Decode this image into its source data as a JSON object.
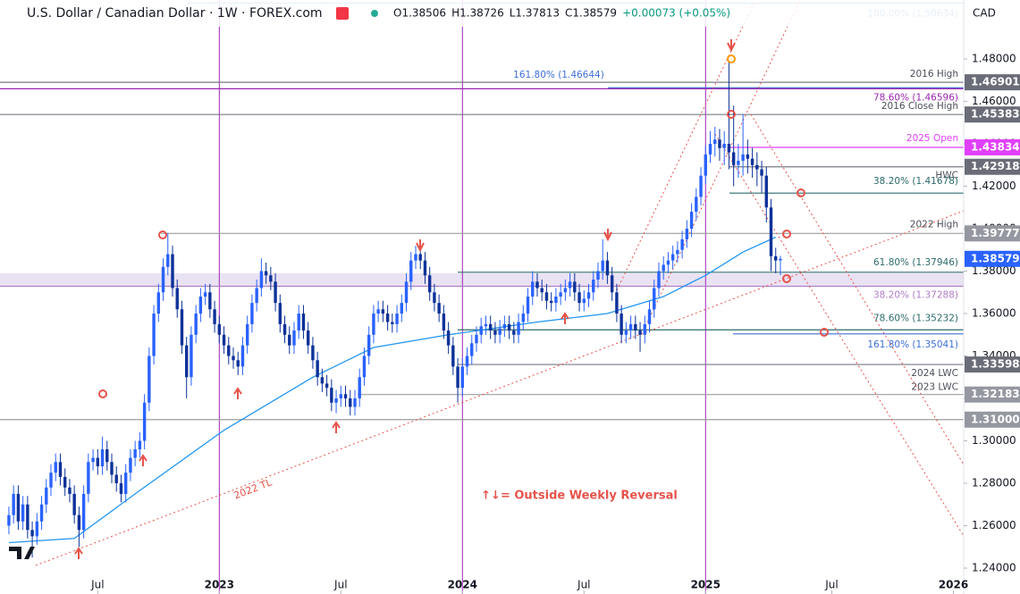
{
  "chart_data": {
    "type": "candlestick",
    "header": {
      "symbol": "U.S. Dollar / Canadian Dollar · 1W · FOREX.com",
      "quote": [
        "O1.38506",
        "H1.38726",
        "L1.37813",
        "C1.38579",
        "+0.00073 (+0.05%)"
      ],
      "currency": "CAD"
    },
    "up_color": "#2962ff",
    "down_color": "#0c3299",
    "ylim": [
      1.2278,
      1.5078
    ],
    "xlim": [
      -1.9,
      204.2
    ],
    "grid": false,
    "yticks": [
      {
        "value": 1.24,
        "label": "1.24000"
      },
      {
        "value": 1.26,
        "label": "1.26000"
      },
      {
        "value": 1.28,
        "label": "1.28000"
      },
      {
        "value": 1.3,
        "label": "1.30000"
      },
      {
        "value": 1.32,
        "label": "1.32000"
      },
      {
        "value": 1.34,
        "label": "1.34000"
      },
      {
        "value": 1.36,
        "label": "1.36000"
      },
      {
        "value": 1.38,
        "label": "1.38000"
      },
      {
        "value": 1.4,
        "label": "1.40000"
      },
      {
        "value": 1.42,
        "label": "1.42000"
      },
      {
        "value": 1.44,
        "label": "1.44000"
      },
      {
        "value": 1.46,
        "label": "1.46000"
      },
      {
        "value": 1.48,
        "label": "1.48000"
      }
    ],
    "xticks": [
      {
        "value": 19,
        "label": "Jul"
      },
      {
        "value": 45,
        "label": "2023"
      },
      {
        "value": 71,
        "label": "Jul"
      },
      {
        "value": 97,
        "label": "2024"
      },
      {
        "value": 123,
        "label": "Jul"
      },
      {
        "value": 149,
        "label": "2025"
      },
      {
        "value": 176,
        "label": "Jul"
      },
      {
        "value": 202,
        "label": "2026"
      }
    ],
    "year_lines": [
      45,
      97,
      149
    ],
    "ohlc": [
      [
        1.26,
        1.269,
        1.256,
        1.265
      ],
      [
        1.265,
        1.279,
        1.261,
        1.275
      ],
      [
        1.275,
        1.279,
        1.258,
        1.262
      ],
      [
        1.262,
        1.274,
        1.258,
        1.27
      ],
      [
        1.27,
        1.274,
        1.254,
        1.258
      ],
      [
        1.258,
        1.262,
        1.245,
        1.255
      ],
      [
        1.255,
        1.266,
        1.251,
        1.262
      ],
      [
        1.262,
        1.274,
        1.258,
        1.27
      ],
      [
        1.27,
        1.282,
        1.266,
        1.278
      ],
      [
        1.278,
        1.289,
        1.274,
        1.285
      ],
      [
        1.285,
        1.294,
        1.281,
        1.29
      ],
      [
        1.29,
        1.294,
        1.279,
        1.283
      ],
      [
        1.283,
        1.287,
        1.274,
        1.278
      ],
      [
        1.278,
        1.282,
        1.271,
        1.275
      ],
      [
        1.275,
        1.279,
        1.261,
        1.265
      ],
      [
        1.265,
        1.269,
        1.25,
        1.258
      ],
      [
        1.258,
        1.279,
        1.254,
        1.275
      ],
      [
        1.275,
        1.294,
        1.271,
        1.29
      ],
      [
        1.29,
        1.296,
        1.286,
        1.292
      ],
      [
        1.292,
        1.296,
        1.284,
        1.288
      ],
      [
        1.288,
        1.302,
        1.284,
        1.296
      ],
      [
        1.296,
        1.3,
        1.286,
        1.29
      ],
      [
        1.29,
        1.294,
        1.28,
        1.284
      ],
      [
        1.284,
        1.288,
        1.276,
        1.28
      ],
      [
        1.28,
        1.284,
        1.271,
        1.275
      ],
      [
        1.275,
        1.289,
        1.271,
        1.285
      ],
      [
        1.285,
        1.296,
        1.281,
        1.292
      ],
      [
        1.292,
        1.3,
        1.288,
        1.296
      ],
      [
        1.296,
        1.304,
        1.292,
        1.3
      ],
      [
        1.3,
        1.322,
        1.296,
        1.318
      ],
      [
        1.318,
        1.344,
        1.314,
        1.34
      ],
      [
        1.34,
        1.364,
        1.336,
        1.36
      ],
      [
        1.36,
        1.374,
        1.356,
        1.37
      ],
      [
        1.37,
        1.386,
        1.366,
        1.382
      ],
      [
        1.382,
        1.398,
        1.378,
        1.388
      ],
      [
        1.388,
        1.392,
        1.368,
        1.372
      ],
      [
        1.372,
        1.376,
        1.358,
        1.362
      ],
      [
        1.362,
        1.366,
        1.341,
        1.345
      ],
      [
        1.345,
        1.349,
        1.32,
        1.33
      ],
      [
        1.33,
        1.354,
        1.326,
        1.35
      ],
      [
        1.35,
        1.364,
        1.346,
        1.36
      ],
      [
        1.36,
        1.372,
        1.356,
        1.368
      ],
      [
        1.368,
        1.374,
        1.364,
        1.37
      ],
      [
        1.37,
        1.374,
        1.358,
        1.362
      ],
      [
        1.362,
        1.366,
        1.351,
        1.355
      ],
      [
        1.355,
        1.359,
        1.346,
        1.35
      ],
      [
        1.35,
        1.354,
        1.341,
        1.345
      ],
      [
        1.345,
        1.349,
        1.336,
        1.34
      ],
      [
        1.34,
        1.344,
        1.334,
        1.338
      ],
      [
        1.338,
        1.342,
        1.331,
        1.335
      ],
      [
        1.335,
        1.349,
        1.331,
        1.345
      ],
      [
        1.345,
        1.359,
        1.341,
        1.355
      ],
      [
        1.355,
        1.369,
        1.351,
        1.365
      ],
      [
        1.365,
        1.376,
        1.361,
        1.372
      ],
      [
        1.372,
        1.386,
        1.368,
        1.38
      ],
      [
        1.38,
        1.384,
        1.374,
        1.378
      ],
      [
        1.378,
        1.382,
        1.371,
        1.375
      ],
      [
        1.375,
        1.379,
        1.361,
        1.365
      ],
      [
        1.365,
        1.369,
        1.351,
        1.355
      ],
      [
        1.355,
        1.359,
        1.346,
        1.35
      ],
      [
        1.35,
        1.354,
        1.341,
        1.345
      ],
      [
        1.345,
        1.356,
        1.341,
        1.352
      ],
      [
        1.352,
        1.364,
        1.348,
        1.36
      ],
      [
        1.36,
        1.364,
        1.348,
        1.352
      ],
      [
        1.352,
        1.356,
        1.341,
        1.345
      ],
      [
        1.345,
        1.349,
        1.334,
        1.338
      ],
      [
        1.338,
        1.342,
        1.326,
        1.33
      ],
      [
        1.33,
        1.334,
        1.323,
        1.327
      ],
      [
        1.327,
        1.331,
        1.321,
        1.325
      ],
      [
        1.325,
        1.329,
        1.314,
        1.318
      ],
      [
        1.318,
        1.324,
        1.313,
        1.32
      ],
      [
        1.32,
        1.326,
        1.316,
        1.322
      ],
      [
        1.322,
        1.326,
        1.316,
        1.32
      ],
      [
        1.32,
        1.324,
        1.312,
        1.316
      ],
      [
        1.316,
        1.324,
        1.312,
        1.32
      ],
      [
        1.32,
        1.334,
        1.316,
        1.33
      ],
      [
        1.33,
        1.344,
        1.326,
        1.34
      ],
      [
        1.34,
        1.354,
        1.336,
        1.35
      ],
      [
        1.35,
        1.364,
        1.346,
        1.36
      ],
      [
        1.36,
        1.366,
        1.356,
        1.362
      ],
      [
        1.362,
        1.366,
        1.356,
        1.36
      ],
      [
        1.36,
        1.364,
        1.352,
        1.356
      ],
      [
        1.356,
        1.36,
        1.351,
        1.355
      ],
      [
        1.355,
        1.364,
        1.351,
        1.36
      ],
      [
        1.36,
        1.369,
        1.356,
        1.365
      ],
      [
        1.365,
        1.379,
        1.361,
        1.375
      ],
      [
        1.375,
        1.389,
        1.371,
        1.385
      ],
      [
        1.385,
        1.392,
        1.381,
        1.388
      ],
      [
        1.388,
        1.392,
        1.381,
        1.385
      ],
      [
        1.385,
        1.389,
        1.374,
        1.378
      ],
      [
        1.378,
        1.382,
        1.366,
        1.37
      ],
      [
        1.37,
        1.374,
        1.361,
        1.365
      ],
      [
        1.365,
        1.369,
        1.356,
        1.36
      ],
      [
        1.36,
        1.364,
        1.348,
        1.352
      ],
      [
        1.352,
        1.356,
        1.341,
        1.345
      ],
      [
        1.345,
        1.349,
        1.331,
        1.335
      ],
      [
        1.335,
        1.339,
        1.318,
        1.325
      ],
      [
        1.325,
        1.339,
        1.321,
        1.335
      ],
      [
        1.335,
        1.344,
        1.331,
        1.34
      ],
      [
        1.34,
        1.35,
        1.336,
        1.346
      ],
      [
        1.346,
        1.354,
        1.342,
        1.35
      ],
      [
        1.35,
        1.358,
        1.346,
        1.354
      ],
      [
        1.354,
        1.359,
        1.35,
        1.355
      ],
      [
        1.355,
        1.359,
        1.348,
        1.352
      ],
      [
        1.352,
        1.356,
        1.346,
        1.35
      ],
      [
        1.35,
        1.357,
        1.346,
        1.353
      ],
      [
        1.353,
        1.359,
        1.349,
        1.355
      ],
      [
        1.355,
        1.359,
        1.348,
        1.352
      ],
      [
        1.352,
        1.356,
        1.346,
        1.35
      ],
      [
        1.35,
        1.36,
        1.346,
        1.356
      ],
      [
        1.356,
        1.364,
        1.352,
        1.36
      ],
      [
        1.36,
        1.372,
        1.356,
        1.368
      ],
      [
        1.368,
        1.38,
        1.364,
        1.375
      ],
      [
        1.375,
        1.379,
        1.368,
        1.372
      ],
      [
        1.372,
        1.376,
        1.366,
        1.37
      ],
      [
        1.37,
        1.374,
        1.362,
        1.366
      ],
      [
        1.366,
        1.37,
        1.361,
        1.365
      ],
      [
        1.365,
        1.372,
        1.361,
        1.368
      ],
      [
        1.368,
        1.374,
        1.364,
        1.37
      ],
      [
        1.37,
        1.376,
        1.366,
        1.372
      ],
      [
        1.372,
        1.379,
        1.368,
        1.375
      ],
      [
        1.375,
        1.379,
        1.366,
        1.37
      ],
      [
        1.37,
        1.374,
        1.361,
        1.365
      ],
      [
        1.365,
        1.371,
        1.361,
        1.367
      ],
      [
        1.367,
        1.374,
        1.363,
        1.37
      ],
      [
        1.37,
        1.38,
        1.366,
        1.376
      ],
      [
        1.376,
        1.384,
        1.372,
        1.38
      ],
      [
        1.38,
        1.395,
        1.376,
        1.385
      ],
      [
        1.385,
        1.389,
        1.374,
        1.378
      ],
      [
        1.378,
        1.382,
        1.366,
        1.37
      ],
      [
        1.37,
        1.374,
        1.356,
        1.36
      ],
      [
        1.36,
        1.364,
        1.346,
        1.35
      ],
      [
        1.35,
        1.356,
        1.346,
        1.352
      ],
      [
        1.352,
        1.359,
        1.348,
        1.355
      ],
      [
        1.355,
        1.359,
        1.348,
        1.352
      ],
      [
        1.352,
        1.356,
        1.342,
        1.35
      ],
      [
        1.35,
        1.359,
        1.346,
        1.355
      ],
      [
        1.355,
        1.366,
        1.351,
        1.362
      ],
      [
        1.362,
        1.376,
        1.358,
        1.372
      ],
      [
        1.372,
        1.384,
        1.368,
        1.38
      ],
      [
        1.38,
        1.387,
        1.376,
        1.383
      ],
      [
        1.383,
        1.389,
        1.379,
        1.385
      ],
      [
        1.385,
        1.392,
        1.381,
        1.388
      ],
      [
        1.388,
        1.394,
        1.384,
        1.39
      ],
      [
        1.39,
        1.399,
        1.386,
        1.395
      ],
      [
        1.395,
        1.404,
        1.391,
        1.4
      ],
      [
        1.4,
        1.412,
        1.396,
        1.408
      ],
      [
        1.408,
        1.419,
        1.404,
        1.415
      ],
      [
        1.415,
        1.429,
        1.411,
        1.425
      ],
      [
        1.425,
        1.439,
        1.421,
        1.435
      ],
      [
        1.435,
        1.446,
        1.431,
        1.44
      ],
      [
        1.44,
        1.448,
        1.434,
        1.442
      ],
      [
        1.442,
        1.447,
        1.432,
        1.438
      ],
      [
        1.438,
        1.446,
        1.43,
        1.44
      ],
      [
        1.44,
        1.479,
        1.428,
        1.436
      ],
      [
        1.436,
        1.458,
        1.42,
        1.43
      ],
      [
        1.43,
        1.44,
        1.424,
        1.432
      ],
      [
        1.432,
        1.454,
        1.425,
        1.435
      ],
      [
        1.435,
        1.442,
        1.426,
        1.433
      ],
      [
        1.433,
        1.438,
        1.424,
        1.43
      ],
      [
        1.43,
        1.436,
        1.42,
        1.428
      ],
      [
        1.428,
        1.432,
        1.417,
        1.425
      ],
      [
        1.425,
        1.429,
        1.403,
        1.41
      ],
      [
        1.41,
        1.414,
        1.38,
        1.387
      ],
      [
        1.387,
        1.391,
        1.379,
        1.385
      ],
      [
        1.38506,
        1.38726,
        1.37813,
        1.38579
      ]
    ],
    "ma": {
      "color": "#2196f3",
      "x": [
        0,
        14,
        27,
        46,
        65,
        78,
        94,
        113,
        128,
        140,
        149,
        157,
        164
      ],
      "values": [
        1.252,
        1.254,
        1.275,
        1.305,
        1.33,
        1.344,
        1.35,
        1.356,
        1.36,
        1.368,
        1.378,
        1.389,
        1.396
      ]
    },
    "levels": [
      {
        "value": 1.50634,
        "label": "100.00% (1.50634)",
        "color": "#5b9bd5"
      },
      {
        "value": 1.46901,
        "label": "2016 High",
        "color": "#787b86",
        "price_label": "1.46901"
      },
      {
        "value": 1.46644,
        "label": "161.80% (1.46644)",
        "color": "#3f6fd8"
      },
      {
        "value": 1.46596,
        "label": "78.60% (1.46596)",
        "color": "#9c27b0"
      },
      {
        "value": 1.45383,
        "label": "2016 Close High",
        "color": "#787b86",
        "price_label": "1.45383"
      },
      {
        "value": 1.43834,
        "label": "2025 Open",
        "color": "#e040fb",
        "price_label": "1.43834"
      },
      {
        "value": 1.42918,
        "label": "HWC",
        "color": "#787b86",
        "price_label": "1.42918"
      },
      {
        "value": 1.41678,
        "label": "38.20% (1.41678)",
        "color": "#2e6b6b"
      },
      {
        "value": 1.39777,
        "label": "2022 High",
        "color": "#9e9e9e",
        "price_label": "1.39777"
      },
      {
        "value": 1.37946,
        "label": "61.80% (1.37946)",
        "color": "#2e6b6b"
      },
      {
        "value": 1.37288,
        "label": "38.20% (1.37288)",
        "color": "#b07cc6"
      },
      {
        "value": 1.35232,
        "label": "78.60% (1.35232)",
        "color": "#2e6b6b"
      },
      {
        "value": 1.35041,
        "label": "161.80% (1.35041)",
        "color": "#3f6fd8"
      },
      {
        "value": 1.33598,
        "label": "2024 LWC",
        "color": "#787b86",
        "price_label": "1.33598"
      },
      {
        "value": 1.32183,
        "label": "2023 LWC",
        "color": "#9e9e9e",
        "price_label": "1.32183"
      },
      {
        "value": 1.31,
        "color": "#9e9e9e",
        "price_label": "1.31000"
      }
    ],
    "current": {
      "value": 1.38579,
      "label": "1.38579",
      "color": "#2962ff"
    },
    "annotations": {
      "trendline": "2022 TL",
      "legend": "↑↓= Outside Weekly Reversal"
    }
  }
}
